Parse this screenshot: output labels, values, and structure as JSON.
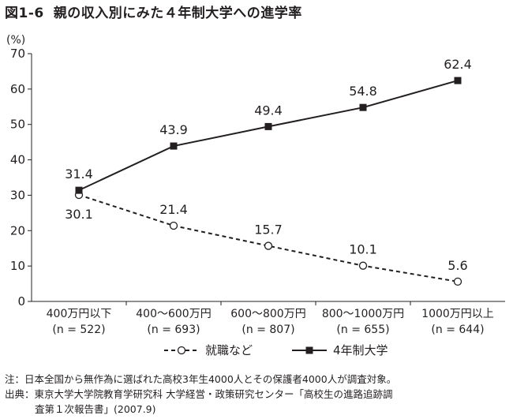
{
  "title": {
    "figure_no": "図1-6",
    "text": "親の収入別にみた４年制大学への進学率"
  },
  "chart_data": {
    "type": "line",
    "title": "親の収入別にみた４年制大学への進学率",
    "y_unit": "(%)",
    "ylim": [
      0,
      70
    ],
    "yticks": [
      0,
      10,
      20,
      30,
      40,
      50,
      60,
      70
    ],
    "grid": false,
    "legend_position": "bottom",
    "categories": [
      {
        "label": "400万円以下",
        "n": "(n = 522)"
      },
      {
        "label": "400～600万円",
        "n": "(n = 693)"
      },
      {
        "label": "600～800万円",
        "n": "(n = 807)"
      },
      {
        "label": "800～1000万円",
        "n": "(n = 655)"
      },
      {
        "label": "1000万円以上",
        "n": "(n = 644)"
      }
    ],
    "series": [
      {
        "name": "就職など",
        "values": [
          30.1,
          21.4,
          15.7,
          10.1,
          5.6
        ],
        "style": "dashed",
        "marker": "open-circle",
        "color": "#231f20"
      },
      {
        "name": "4年制大学",
        "values": [
          31.4,
          43.9,
          49.4,
          54.8,
          62.4
        ],
        "style": "solid",
        "marker": "filled-square",
        "color": "#231f20"
      }
    ]
  },
  "notes": {
    "note_label": "注：",
    "note_text": "日本全国から無作為に選ばれた高校3年生4000人とその保護者4000人が調査対象。",
    "source_label": "出典：",
    "source_text": "東京大学大学院教育学研究科 大学経営・政策研究センター「高校生の進路追跡調",
    "source_text_cont": "査第１次報告書」(2007.9)"
  }
}
